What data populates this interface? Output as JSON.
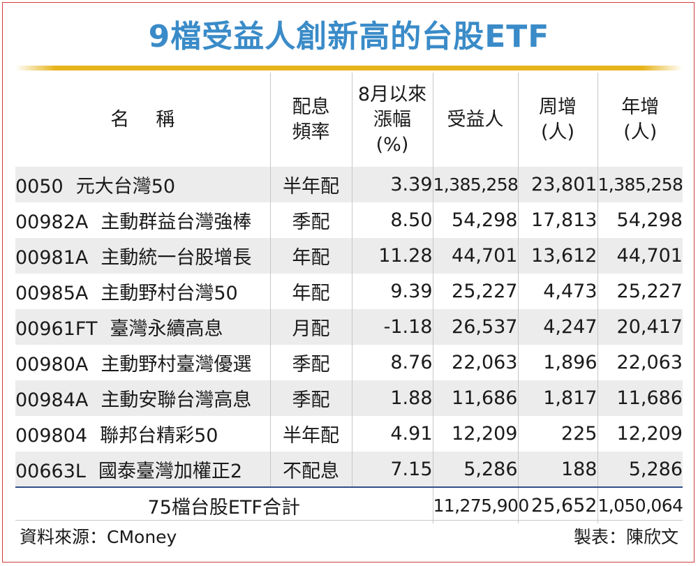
{
  "title": "9檔受益人創新高的台股ETF",
  "table": {
    "headers": {
      "name": "名稱",
      "freq_line1": "配息",
      "freq_line2": "頻率",
      "chg_line1": "8月以來",
      "chg_line2": "漲幅",
      "chg_line3": "(%)",
      "beneficiaries": "受益人",
      "weekly_line1": "周增",
      "weekly_line2": "(人)",
      "yearly_line1": "年增",
      "yearly_line2": "(人)"
    },
    "rows": [
      {
        "code": "0050",
        "name": "元大台灣50",
        "freq": "半年配",
        "change": "3.39",
        "beneficiaries": "1,385,258",
        "weekly": "23,801",
        "yearly": "1,385,258"
      },
      {
        "code": "00982A",
        "name": "主動群益台灣強棒",
        "freq": "季配",
        "change": "8.50",
        "beneficiaries": "54,298",
        "weekly": "17,813",
        "yearly": "54,298"
      },
      {
        "code": "00981A",
        "name": "主動統一台股增長",
        "freq": "年配",
        "change": "11.28",
        "beneficiaries": "44,701",
        "weekly": "13,612",
        "yearly": "44,701"
      },
      {
        "code": "00985A",
        "name": "主動野村台灣50",
        "freq": "年配",
        "change": "9.39",
        "beneficiaries": "25,227",
        "weekly": "4,473",
        "yearly": "25,227"
      },
      {
        "code": "00961FT",
        "name": "臺灣永續高息",
        "freq": "月配",
        "change": "-1.18",
        "beneficiaries": "26,537",
        "weekly": "4,247",
        "yearly": "20,417"
      },
      {
        "code": "00980A",
        "name": "主動野村臺灣優選",
        "freq": "季配",
        "change": "8.76",
        "beneficiaries": "22,063",
        "weekly": "1,896",
        "yearly": "22,063"
      },
      {
        "code": "00984A",
        "name": "主動安聯台灣高息",
        "freq": "季配",
        "change": "1.88",
        "beneficiaries": "11,686",
        "weekly": "1,817",
        "yearly": "11,686"
      },
      {
        "code": "009804",
        "name": "聯邦台精彩50",
        "freq": "半年配",
        "change": "4.91",
        "beneficiaries": "12,209",
        "weekly": "225",
        "yearly": "12,209"
      },
      {
        "code": "00663L",
        "name": "國泰臺灣加權正2",
        "freq": "不配息",
        "change": "7.15",
        "beneficiaries": "5,286",
        "weekly": "188",
        "yearly": "5,286"
      }
    ],
    "total": {
      "label": "75檔台股ETF合計",
      "beneficiaries": "11,275,900",
      "weekly": "25,652",
      "yearly": "1,050,064"
    }
  },
  "footer": {
    "source": "資料來源：CMoney",
    "author": "製表：陳欣文"
  },
  "colors": {
    "title": "#3a8bc8",
    "gold_rule": "#e7b41c",
    "frame_border": "#d43b3b",
    "row_shade": "#ececec",
    "total_rule": "#2f4f86"
  }
}
